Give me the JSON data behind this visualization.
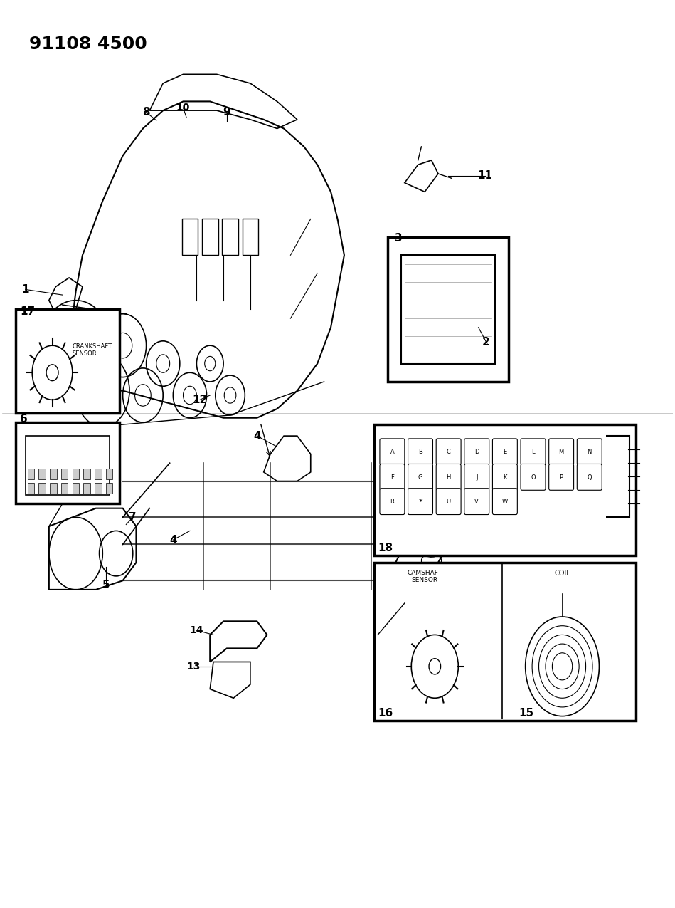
{
  "title": "91108 4500",
  "bg_color": "#ffffff",
  "line_color": "#000000",
  "title_fontsize": 18,
  "fig_width": 9.49,
  "fig_height": 12.75,
  "dpi": 100,
  "crankshaft_label": "CRANKSHAFT\nSENSOR",
  "camshaft_label": "CAMSHAFT\nSENSOR",
  "coil_label": "COIL",
  "connector_row1": [
    "A",
    "B",
    "C",
    "D",
    "E",
    "L",
    "M",
    "N"
  ],
  "connector_row2": [
    "F",
    "G",
    "H",
    "J",
    "K",
    "O",
    "P",
    "Q"
  ],
  "connector_row3": [
    "R",
    "*",
    "U",
    "V",
    "W"
  ]
}
